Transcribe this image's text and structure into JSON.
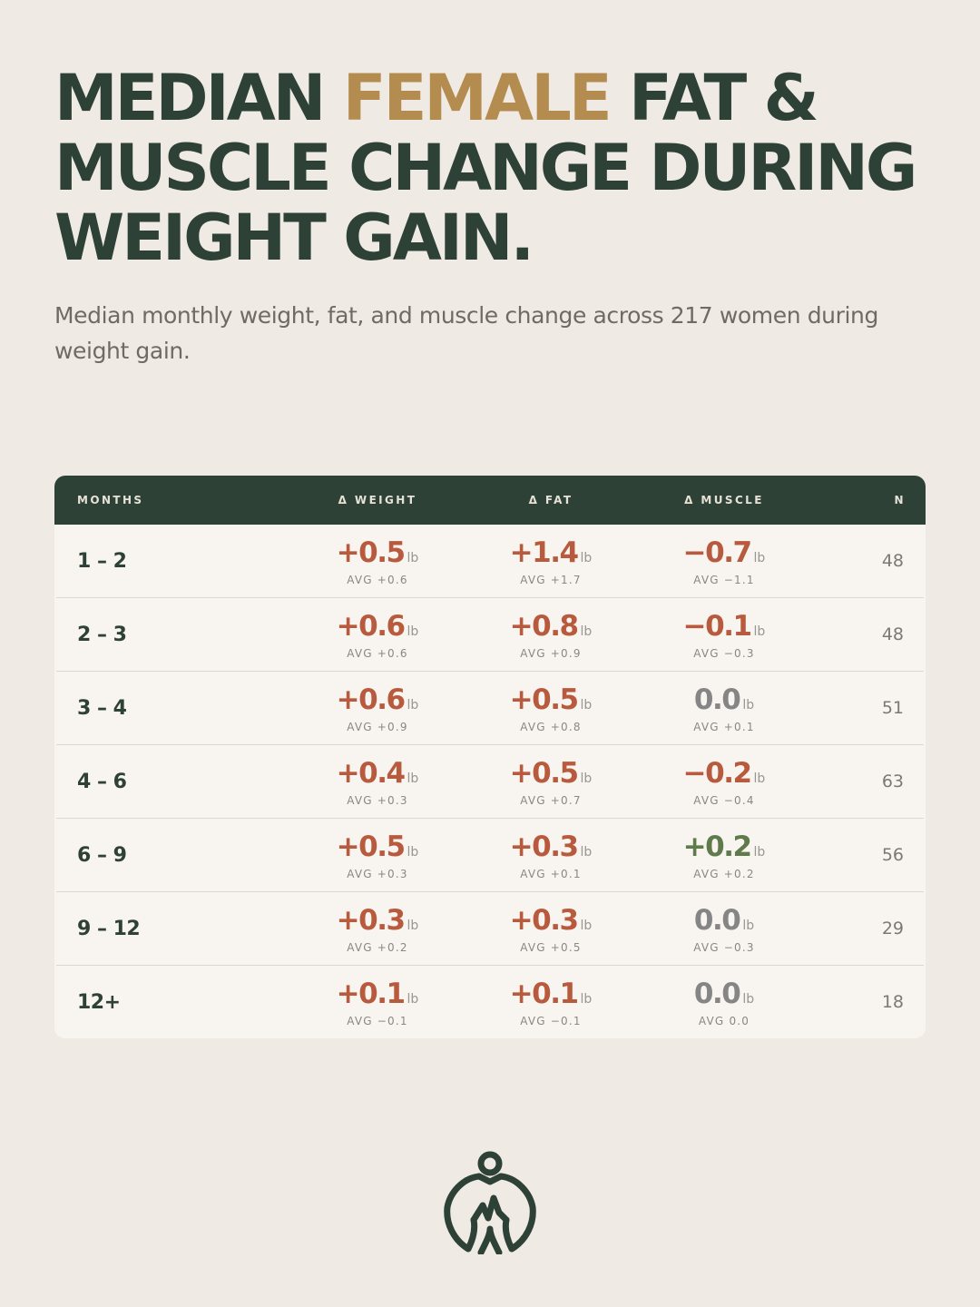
{
  "title": {
    "part1": "MEDIAN ",
    "accent": "FEMALE",
    "part2": " FAT & MUSCLE CHANGE DURING WEIGHT GAIN."
  },
  "subtitle": "Median monthly weight, fat, and muscle change across 217 women during weight gain.",
  "table": {
    "headers": {
      "months": "MONTHS",
      "weight": "Δ WEIGHT",
      "fat": "Δ FAT",
      "muscle": "Δ MUSCLE",
      "n": "N"
    },
    "unit": "lb",
    "rows": [
      {
        "months": "1 – 2",
        "weight": "+0.5",
        "weight_avg": "AVG +0.6",
        "fat": "+1.4",
        "fat_avg": "AVG +1.7",
        "muscle": "−0.7",
        "muscle_avg": "AVG −1.1",
        "n": "48"
      },
      {
        "months": "2 – 3",
        "weight": "+0.6",
        "weight_avg": "AVG +0.6",
        "fat": "+0.8",
        "fat_avg": "AVG +0.9",
        "muscle": "−0.1",
        "muscle_avg": "AVG −0.3",
        "n": "48"
      },
      {
        "months": "3 – 4",
        "weight": "+0.6",
        "weight_avg": "AVG +0.9",
        "fat": "+0.5",
        "fat_avg": "AVG +0.8",
        "muscle": "0.0",
        "muscle_avg": "AVG +0.1",
        "n": "51"
      },
      {
        "months": "4 – 6",
        "weight": "+0.4",
        "weight_avg": "AVG +0.3",
        "fat": "+0.5",
        "fat_avg": "AVG +0.7",
        "muscle": "−0.2",
        "muscle_avg": "AVG −0.4",
        "n": "63"
      },
      {
        "months": "6 – 9",
        "weight": "+0.5",
        "weight_avg": "AVG +0.3",
        "fat": "+0.3",
        "fat_avg": "AVG +0.1",
        "muscle": "+0.2",
        "muscle_avg": "AVG +0.2",
        "n": "56"
      },
      {
        "months": "9 – 12",
        "weight": "+0.3",
        "weight_avg": "AVG +0.2",
        "fat": "+0.3",
        "fat_avg": "AVG +0.5",
        "muscle": "0.0",
        "muscle_avg": "AVG −0.3",
        "n": "29"
      },
      {
        "months": "12+",
        "weight": "+0.1",
        "weight_avg": "AVG −0.1",
        "fat": "+0.1",
        "fat_avg": "AVG −0.1",
        "muscle": "0.0",
        "muscle_avg": "AVG 0.0",
        "n": "18"
      }
    ]
  },
  "colors": {
    "primary": "#2e4136",
    "accent": "#b48c50",
    "positive_change": "#b85a3e",
    "muscle_gain": "#5f7a4b",
    "no_change": "#858585",
    "background": "#efebe4"
  },
  "icons": {
    "logo": "figure-in-circle-with-heartbeat-logo"
  }
}
